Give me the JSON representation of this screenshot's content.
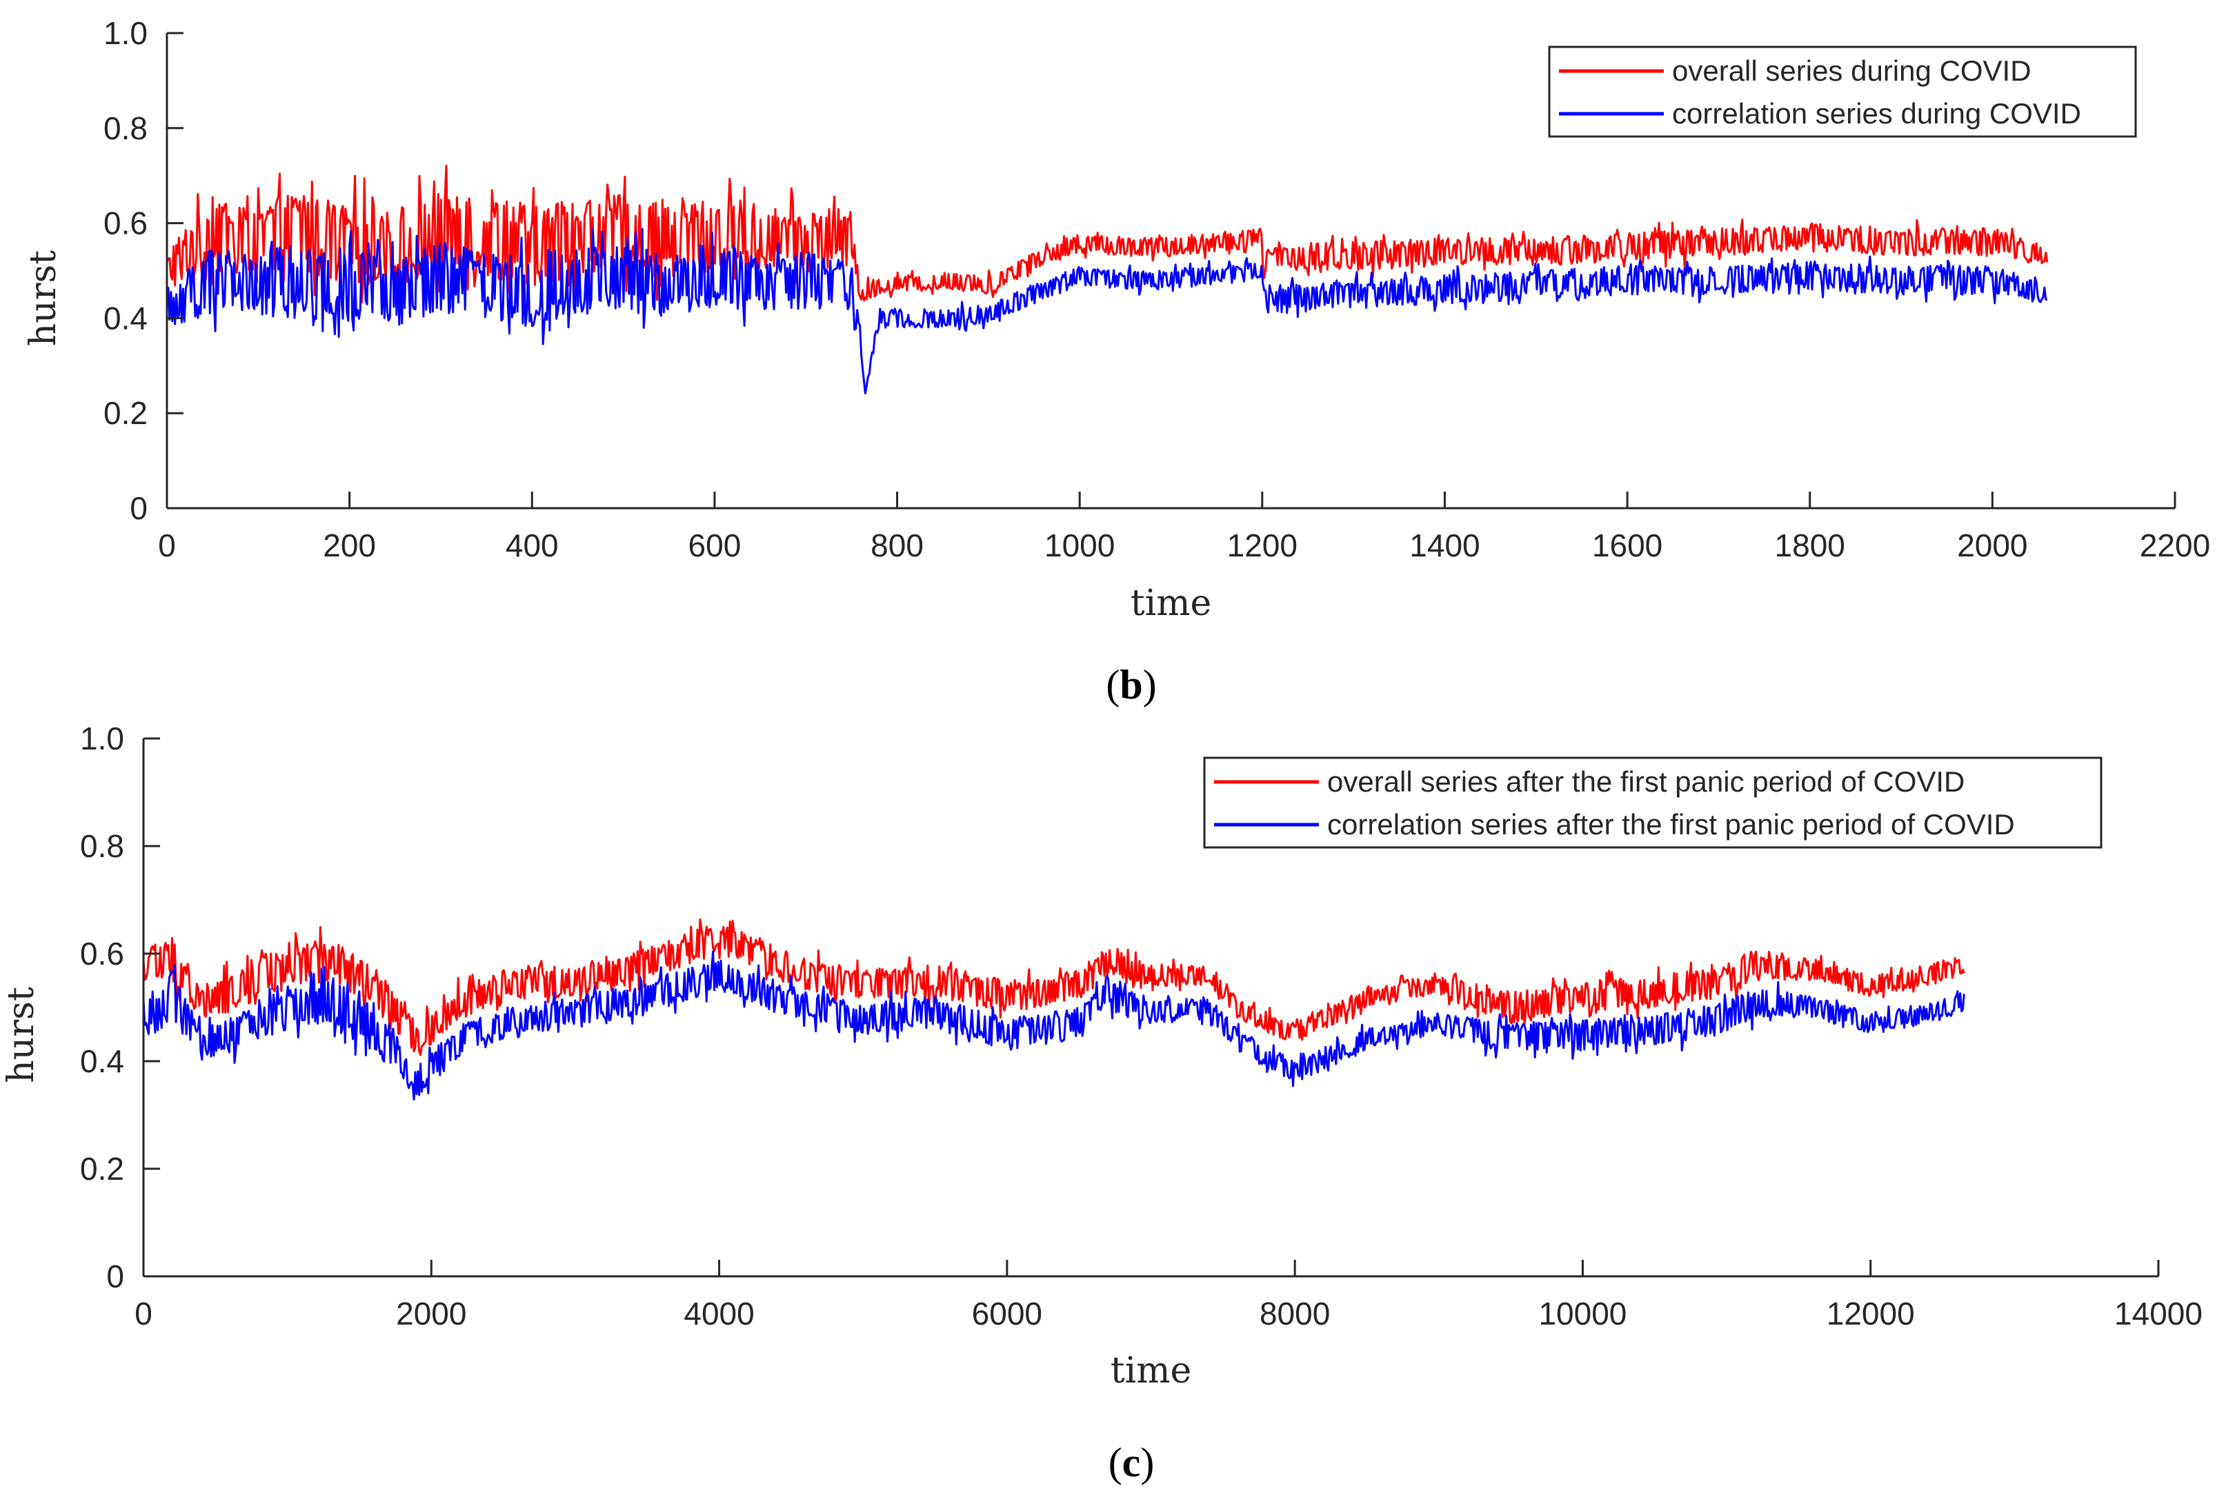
{
  "chart_data": [
    {
      "type": "line",
      "panel": "b",
      "caption": {
        "open": "(",
        "letter": "b",
        "close": ")"
      },
      "xlabel": "time",
      "ylabel": "hurst",
      "xlim": [
        0,
        2200
      ],
      "ylim": [
        0,
        1.0
      ],
      "xticks": [
        0,
        200,
        400,
        600,
        800,
        1000,
        1200,
        1400,
        1600,
        1800,
        2000,
        2200
      ],
      "xtick_labels": [
        "0",
        "200",
        "400",
        "600",
        "800",
        "1000",
        "1200",
        "1400",
        "1600",
        "1800",
        "2000",
        "2200"
      ],
      "yticks": [
        0,
        0.2,
        0.4,
        0.6,
        0.8,
        1.0
      ],
      "ytick_labels": [
        "0",
        "0.2",
        "0.4",
        "0.6",
        "0.8",
        "1.0"
      ],
      "legend_position": "top-right",
      "series": [
        {
          "name": "overall series during COVID",
          "color": "#ff0000",
          "x": [
            0,
            50,
            100,
            150,
            200,
            250,
            300,
            350,
            400,
            450,
            500,
            550,
            600,
            650,
            700,
            750,
            760,
            780,
            850,
            900,
            950,
            1000,
            1050,
            1100,
            1150,
            1200,
            1201,
            1250,
            1300,
            1400,
            1500,
            1600,
            1700,
            1800,
            1900,
            2000,
            2060
          ],
          "values": [
            0.5,
            0.58,
            0.57,
            0.58,
            0.56,
            0.55,
            0.58,
            0.57,
            0.55,
            0.57,
            0.58,
            0.56,
            0.58,
            0.57,
            0.56,
            0.57,
            0.45,
            0.47,
            0.48,
            0.47,
            0.52,
            0.56,
            0.55,
            0.55,
            0.56,
            0.57,
            0.52,
            0.53,
            0.53,
            0.54,
            0.54,
            0.55,
            0.56,
            0.57,
            0.56,
            0.56,
            0.53
          ],
          "spread": [
            0.04,
            0.08,
            0.08,
            0.09,
            0.09,
            0.08,
            0.09,
            0.08,
            0.09,
            0.08,
            0.08,
            0.08,
            0.08,
            0.07,
            0.07,
            0.06,
            0.02,
            0.02,
            0.02,
            0.02,
            0.02,
            0.02,
            0.02,
            0.02,
            0.02,
            0.02,
            0.03,
            0.03,
            0.03,
            0.03,
            0.03,
            0.03,
            0.03,
            0.03,
            0.03,
            0.03,
            0.02
          ]
        },
        {
          "name": "correlation series during COVID",
          "color": "#0000ff",
          "x": [
            0,
            50,
            100,
            150,
            200,
            250,
            300,
            350,
            400,
            450,
            500,
            550,
            600,
            650,
            700,
            750,
            760,
            765,
            780,
            850,
            900,
            950,
            1000,
            1050,
            1100,
            1150,
            1200,
            1201,
            1250,
            1300,
            1400,
            1500,
            1600,
            1700,
            1800,
            1900,
            2000,
            2060
          ],
          "values": [
            0.42,
            0.48,
            0.47,
            0.48,
            0.47,
            0.45,
            0.48,
            0.47,
            0.46,
            0.48,
            0.48,
            0.47,
            0.49,
            0.47,
            0.48,
            0.47,
            0.35,
            0.24,
            0.4,
            0.4,
            0.41,
            0.45,
            0.49,
            0.48,
            0.48,
            0.49,
            0.5,
            0.44,
            0.44,
            0.45,
            0.46,
            0.47,
            0.48,
            0.48,
            0.49,
            0.48,
            0.48,
            0.45
          ],
          "spread": [
            0.04,
            0.07,
            0.07,
            0.08,
            0.08,
            0.07,
            0.08,
            0.07,
            0.08,
            0.07,
            0.07,
            0.07,
            0.07,
            0.06,
            0.06,
            0.05,
            0.02,
            0.0,
            0.02,
            0.02,
            0.02,
            0.02,
            0.02,
            0.02,
            0.02,
            0.02,
            0.02,
            0.03,
            0.03,
            0.03,
            0.03,
            0.03,
            0.03,
            0.03,
            0.03,
            0.03,
            0.03,
            0.02
          ]
        }
      ]
    },
    {
      "type": "line",
      "panel": "c",
      "caption": {
        "open": "(",
        "letter": "c",
        "close": ")"
      },
      "xlabel": "time",
      "ylabel": "hurst",
      "xlim": [
        0,
        14000
      ],
      "ylim": [
        0,
        1.0
      ],
      "xticks": [
        0,
        2000,
        4000,
        6000,
        8000,
        10000,
        12000,
        14000
      ],
      "xtick_labels": [
        "0",
        "2000",
        "4000",
        "6000",
        "8000",
        "10000",
        "12000",
        "14000"
      ],
      "yticks": [
        0,
        0.2,
        0.4,
        0.6,
        0.8,
        1.0
      ],
      "ytick_labels": [
        "0",
        "0.2",
        "0.4",
        "0.6",
        "0.8",
        "1.0"
      ],
      "legend_position": "top-right",
      "series": [
        {
          "name": "overall series after the first panic period of COVID",
          "color": "#ff0000",
          "x": [
            0,
            200,
            400,
            600,
            1000,
            1300,
            1600,
            1900,
            2200,
            2500,
            3000,
            3500,
            4000,
            4500,
            5000,
            5500,
            6000,
            6500,
            6700,
            7000,
            7400,
            7600,
            8000,
            8500,
            9000,
            9500,
            10000,
            10500,
            11000,
            11200,
            11600,
            12000,
            12400,
            12650
          ],
          "values": [
            0.58,
            0.59,
            0.51,
            0.53,
            0.58,
            0.59,
            0.54,
            0.44,
            0.51,
            0.54,
            0.55,
            0.58,
            0.63,
            0.57,
            0.54,
            0.55,
            0.52,
            0.54,
            0.59,
            0.56,
            0.56,
            0.5,
            0.45,
            0.52,
            0.54,
            0.5,
            0.52,
            0.53,
            0.55,
            0.58,
            0.57,
            0.54,
            0.56,
            0.58
          ],
          "spread": [
            0.03,
            0.04,
            0.03,
            0.04,
            0.04,
            0.04,
            0.04,
            0.03,
            0.03,
            0.03,
            0.03,
            0.03,
            0.03,
            0.03,
            0.03,
            0.03,
            0.03,
            0.03,
            0.03,
            0.02,
            0.02,
            0.02,
            0.02,
            0.02,
            0.02,
            0.03,
            0.03,
            0.03,
            0.03,
            0.03,
            0.02,
            0.02,
            0.02,
            0.02
          ]
        },
        {
          "name": "correlation series after the first panic period of COVID",
          "color": "#0000ff",
          "x": [
            0,
            200,
            400,
            600,
            1000,
            1300,
            1600,
            1900,
            2200,
            2500,
            3000,
            3500,
            4000,
            4500,
            5000,
            5500,
            6000,
            6500,
            6700,
            7000,
            7400,
            7600,
            8000,
            8500,
            9000,
            9500,
            10000,
            10500,
            11000,
            11200,
            11600,
            12000,
            12400,
            12650
          ],
          "values": [
            0.48,
            0.52,
            0.43,
            0.45,
            0.5,
            0.51,
            0.46,
            0.36,
            0.44,
            0.47,
            0.49,
            0.52,
            0.56,
            0.51,
            0.48,
            0.49,
            0.45,
            0.47,
            0.53,
            0.49,
            0.5,
            0.44,
            0.38,
            0.44,
            0.47,
            0.44,
            0.45,
            0.46,
            0.48,
            0.51,
            0.5,
            0.47,
            0.49,
            0.51
          ],
          "spread": [
            0.04,
            0.05,
            0.03,
            0.04,
            0.04,
            0.05,
            0.04,
            0.03,
            0.03,
            0.03,
            0.03,
            0.03,
            0.03,
            0.03,
            0.03,
            0.03,
            0.03,
            0.03,
            0.04,
            0.02,
            0.02,
            0.02,
            0.02,
            0.02,
            0.02,
            0.03,
            0.03,
            0.03,
            0.03,
            0.03,
            0.02,
            0.02,
            0.02,
            0.02
          ]
        }
      ]
    }
  ]
}
